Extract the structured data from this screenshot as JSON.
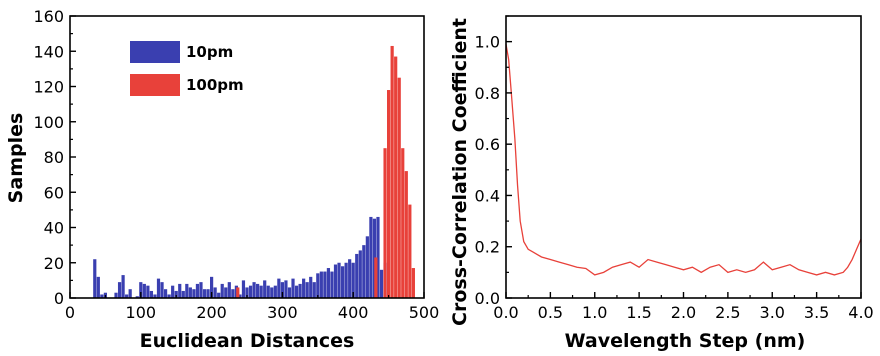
{
  "colors": {
    "blue": "#3a3fb0",
    "red": "#e8413a",
    "line": "#e8413a",
    "axis": "#000000"
  },
  "chart_data": [
    {
      "type": "bar",
      "xlabel": "Euclidean Distances",
      "ylabel": "Samples",
      "xlim": [
        0,
        500
      ],
      "ylim": [
        0,
        160
      ],
      "xticks": [
        "0",
        "100",
        "200",
        "300",
        "400",
        "500"
      ],
      "yticks": [
        "0",
        "20",
        "40",
        "60",
        "80",
        "100",
        "120",
        "140",
        "160"
      ],
      "legend_position": "top-left",
      "series": [
        {
          "name": "10pm",
          "color": "#3a3fb0",
          "x": [
            35,
            40,
            45,
            50,
            65,
            70,
            75,
            80,
            85,
            95,
            100,
            105,
            110,
            115,
            120,
            125,
            130,
            135,
            140,
            145,
            150,
            155,
            160,
            165,
            170,
            175,
            180,
            185,
            190,
            195,
            200,
            205,
            210,
            215,
            220,
            225,
            230,
            235,
            240,
            245,
            250,
            255,
            260,
            265,
            270,
            275,
            280,
            285,
            290,
            295,
            300,
            305,
            310,
            315,
            320,
            325,
            330,
            335,
            340,
            345,
            350,
            355,
            360,
            365,
            370,
            375,
            380,
            385,
            390,
            395,
            400,
            405,
            410,
            415,
            420,
            425,
            430,
            435,
            440,
            445
          ],
          "values": [
            22,
            12,
            2,
            3,
            3,
            9,
            13,
            2,
            5,
            1,
            9,
            8,
            7,
            4,
            2,
            11,
            9,
            5,
            2,
            7,
            4,
            8,
            4,
            8,
            6,
            5,
            8,
            9,
            5,
            5,
            12,
            6,
            3,
            8,
            6,
            9,
            5,
            7,
            2,
            10,
            6,
            7,
            9,
            8,
            7,
            10,
            7,
            6,
            7,
            11,
            9,
            10,
            6,
            11,
            7,
            8,
            11,
            9,
            12,
            9,
            14,
            15,
            15,
            17,
            15,
            19,
            20,
            18,
            20,
            22,
            20,
            25,
            27,
            30,
            35,
            46,
            45,
            46,
            16,
            20
          ],
          "annotation": ""
        },
        {
          "name": "100pm",
          "color": "#e8413a",
          "x": [
            237,
            432,
            445,
            450,
            455,
            460,
            465,
            470,
            475,
            480,
            485
          ],
          "values": [
            6,
            23,
            85,
            118,
            143,
            137,
            125,
            85,
            72,
            53,
            17
          ]
        }
      ]
    },
    {
      "type": "line",
      "xlabel": "Wavelength Step (nm)",
      "ylabel": "Cross-Correlation Coefficient",
      "xlim": [
        0,
        4
      ],
      "ylim": [
        0,
        1.1
      ],
      "xticks": [
        "0.0",
        "0.5",
        "1.0",
        "1.5",
        "2.0",
        "2.5",
        "3.0",
        "3.5",
        "4.0"
      ],
      "yticks": [
        "0.0",
        "0.2",
        "0.4",
        "0.6",
        "0.8",
        "1.0"
      ],
      "series": [
        {
          "name": "",
          "color": "#e8413a",
          "x": [
            0.0,
            0.03,
            0.06,
            0.1,
            0.13,
            0.16,
            0.2,
            0.25,
            0.3,
            0.4,
            0.5,
            0.6,
            0.7,
            0.8,
            0.9,
            1.0,
            1.1,
            1.2,
            1.3,
            1.4,
            1.5,
            1.6,
            1.7,
            1.8,
            1.9,
            2.0,
            2.1,
            2.2,
            2.3,
            2.4,
            2.5,
            2.6,
            2.7,
            2.8,
            2.9,
            3.0,
            3.1,
            3.2,
            3.3,
            3.4,
            3.5,
            3.6,
            3.7,
            3.8,
            3.85,
            3.9,
            3.95,
            4.0
          ],
          "y": [
            0.99,
            0.93,
            0.8,
            0.62,
            0.44,
            0.3,
            0.22,
            0.19,
            0.18,
            0.16,
            0.15,
            0.14,
            0.13,
            0.12,
            0.115,
            0.09,
            0.1,
            0.12,
            0.13,
            0.14,
            0.12,
            0.15,
            0.14,
            0.13,
            0.12,
            0.11,
            0.12,
            0.1,
            0.12,
            0.13,
            0.1,
            0.11,
            0.1,
            0.11,
            0.14,
            0.11,
            0.12,
            0.13,
            0.11,
            0.1,
            0.09,
            0.1,
            0.09,
            0.1,
            0.12,
            0.15,
            0.19,
            0.23
          ]
        }
      ]
    }
  ]
}
